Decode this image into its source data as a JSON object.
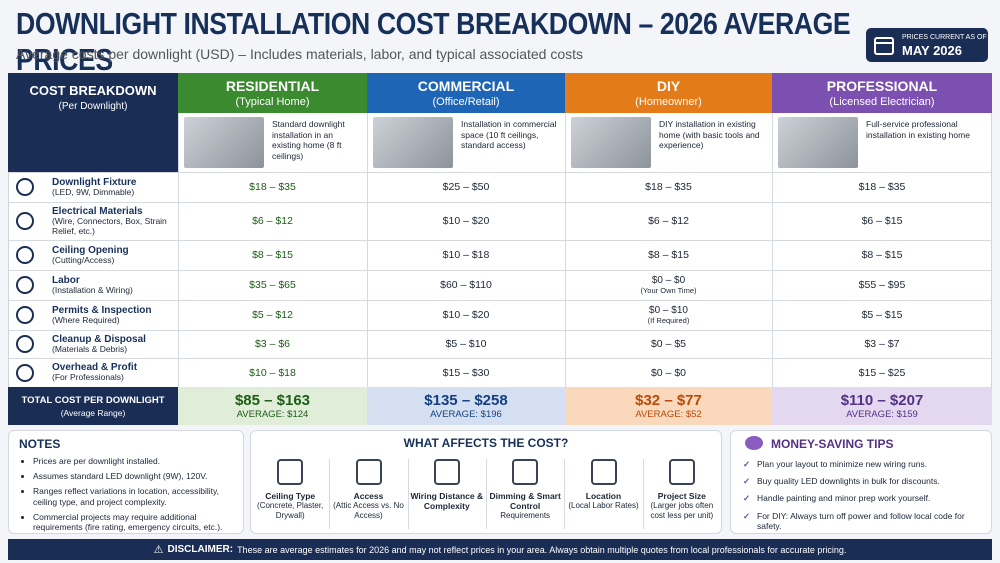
{
  "header": {
    "title": "DOWNLIGHT INSTALLATION COST BREAKDOWN – 2026 AVERAGE PRICES",
    "subtitle": "Average costs per downlight (USD) – Includes materials, labor, and typical associated costs",
    "badge": {
      "label": "PRICES CURRENT AS OF",
      "date": "MAY 2026"
    }
  },
  "table": {
    "corner": {
      "title": "COST BREAKDOWN",
      "subtitle": "(Per Downlight)"
    },
    "columns": [
      {
        "name": "RESIDENTIAL",
        "subtitle": "(Typical Home)",
        "description": "Standard downlight installation in an existing home (8 ft ceilings)"
      },
      {
        "name": "COMMERCIAL",
        "subtitle": "(Office/Retail)",
        "description": "Installation in commercial space (10 ft ceilings, standard access)"
      },
      {
        "name": "DIY",
        "subtitle": "(Homeowner)",
        "description": "DIY installation in existing home (with basic tools and experience)"
      },
      {
        "name": "PROFESSIONAL",
        "subtitle": "(Licensed Electrician)",
        "description": "Full-service professional installation in existing home"
      }
    ],
    "rows": [
      {
        "label": "Downlight Fixture",
        "sublabel": "(LED, 9W, Dimmable)",
        "cells": [
          "$18 – $35",
          "$25 – $50",
          "$18 – $35",
          "$18 – $35"
        ]
      },
      {
        "label": "Electrical Materials",
        "sublabel": "(Wire, Connectors, Box, Strain Relief, etc.)",
        "cells": [
          "$6 – $12",
          "$10 – $20",
          "$6 – $12",
          "$6 – $15"
        ]
      },
      {
        "label": "Ceiling Opening",
        "sublabel": "(Cutting/Access)",
        "cells": [
          "$8 – $15",
          "$10 – $18",
          "$8 – $15",
          "$8 – $15"
        ]
      },
      {
        "label": "Labor",
        "sublabel": "(Installation & Wiring)",
        "cells": [
          "$35 – $65",
          "$60 – $110",
          {
            "text": "$0 – $0",
            "note": "(Your Own Time)"
          },
          "$55 – $95"
        ]
      },
      {
        "label": "Permits & Inspection",
        "sublabel": "(Where Required)",
        "cells": [
          "$5 – $12",
          "$10 – $20",
          {
            "text": "$0 – $10",
            "note": "(If Required)"
          },
          "$5 – $15"
        ]
      },
      {
        "label": "Cleanup & Disposal",
        "sublabel": "(Materials & Debris)",
        "cells": [
          "$3 – $6",
          "$5 – $10",
          "$0 – $5",
          "$3 – $7"
        ]
      },
      {
        "label": "Overhead & Profit",
        "sublabel": "(For Professionals)",
        "cells": [
          "$10 – $18",
          "$15 – $30",
          "$0 – $0",
          "$15 – $25"
        ]
      }
    ],
    "total": {
      "label": "TOTAL COST PER DOWNLIGHT",
      "sublabel": "(Average Range)",
      "cells": [
        {
          "range": "$85 – $163",
          "average": "AVERAGE: $124"
        },
        {
          "range": "$135 – $258",
          "average": "AVERAGE: $196"
        },
        {
          "range": "$32 – $77",
          "average": "AVERAGE: $52"
        },
        {
          "range": "$110 – $207",
          "average": "AVERAGE: $159"
        }
      ]
    }
  },
  "notes": {
    "title": "NOTES",
    "items": [
      "Prices are per downlight installed.",
      "Assumes standard LED downlight (9W), 120V.",
      "Ranges reflect variations in location, accessibility, ceiling type, and project complexity.",
      "Commercial projects may require additional requirements (fire rating, emergency circuits, etc.)."
    ]
  },
  "factors": {
    "title": "WHAT AFFECTS THE COST?",
    "items": [
      {
        "title": "Ceiling Type",
        "subtitle": "(Concrete, Plaster, Drywall)"
      },
      {
        "title": "Access",
        "subtitle": "(Attic Access vs. No Access)"
      },
      {
        "title": "Wiring Distance & Complexity"
      },
      {
        "title": "Dimming & Smart Control",
        "subtitle": "Requirements"
      },
      {
        "title": "Location",
        "subtitle": "(Local Labor Rates)"
      },
      {
        "title": "Project Size",
        "subtitle": "(Larger jobs often cost less per unit)"
      }
    ]
  },
  "tips": {
    "title": "MONEY-SAVING TIPS",
    "items": [
      "Plan your layout to minimize new wiring runs.",
      "Buy quality LED downlights in bulk for discounts.",
      "Handle painting and minor prep work yourself.",
      "For DIY: Always turn off power and follow local code for safety."
    ]
  },
  "disclaimer": {
    "label": "DISCLAIMER:",
    "text": "These are average estimates for 2026 and may not reflect prices in your area. Always obtain multiple quotes from local professionals for accurate pricing."
  }
}
